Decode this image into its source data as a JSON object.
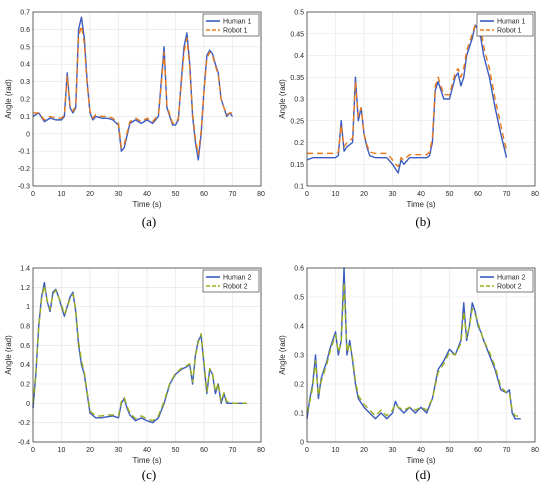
{
  "figure": {
    "panels": [
      {
        "caption": "(a)"
      },
      {
        "caption": "(b)"
      },
      {
        "caption": "(c)"
      },
      {
        "caption": "(d)"
      }
    ]
  },
  "chart_data": [
    {
      "type": "line",
      "title": "",
      "xlabel": "Time (s)",
      "ylabel": "Angle (rad)",
      "xlim": [
        0,
        80
      ],
      "ylim": [
        -0.3,
        0.7
      ],
      "xticks": [
        "0",
        "10",
        "20",
        "30",
        "40",
        "50",
        "60",
        "70",
        "80"
      ],
      "yticks": [
        "-0.3",
        "-0.2",
        "-0.1",
        "0",
        "0.1",
        "0.2",
        "0.3",
        "0.4",
        "0.5",
        "0.6",
        "0.7"
      ],
      "grid": true,
      "legend_position": "top-right",
      "x": [
        0,
        2,
        4,
        6,
        8,
        10,
        11,
        12,
        13,
        14,
        15,
        16,
        17,
        18,
        19,
        20,
        21,
        22,
        24,
        26,
        28,
        30,
        31,
        32,
        34,
        36,
        38,
        40,
        42,
        44,
        45,
        46,
        47,
        48,
        49,
        50,
        51,
        52,
        53,
        54,
        55,
        56,
        57,
        58,
        59,
        60,
        61,
        62,
        63,
        64,
        65,
        66,
        67,
        68,
        69,
        70
      ],
      "series": [
        {
          "name": "Human 1",
          "color": "#3a5bbf",
          "dash": "solid",
          "values": [
            0.1,
            0.12,
            0.07,
            0.09,
            0.08,
            0.08,
            0.1,
            0.35,
            0.15,
            0.12,
            0.15,
            0.6,
            0.67,
            0.55,
            0.3,
            0.12,
            0.08,
            0.1,
            0.09,
            0.09,
            0.08,
            0.05,
            -0.1,
            -0.08,
            0.06,
            0.08,
            0.06,
            0.08,
            0.06,
            0.1,
            0.3,
            0.5,
            0.15,
            0.1,
            0.05,
            0.05,
            0.08,
            0.3,
            0.5,
            0.58,
            0.4,
            0.1,
            -0.05,
            -0.15,
            0.0,
            0.25,
            0.45,
            0.48,
            0.46,
            0.4,
            0.35,
            0.2,
            0.15,
            0.1,
            0.12,
            0.1
          ]
        },
        {
          "name": "Robot 1",
          "color": "#e87a1e",
          "dash": "6,4",
          "values": [
            0.12,
            0.12,
            0.08,
            0.1,
            0.09,
            0.09,
            0.11,
            0.33,
            0.16,
            0.13,
            0.16,
            0.56,
            0.62,
            0.52,
            0.28,
            0.13,
            0.09,
            0.11,
            0.1,
            0.1,
            0.09,
            0.06,
            -0.08,
            -0.06,
            0.07,
            0.09,
            0.07,
            0.09,
            0.07,
            0.11,
            0.28,
            0.47,
            0.16,
            0.11,
            0.06,
            0.06,
            0.09,
            0.28,
            0.47,
            0.55,
            0.38,
            0.12,
            -0.03,
            -0.12,
            0.02,
            0.24,
            0.43,
            0.47,
            0.45,
            0.39,
            0.34,
            0.2,
            0.15,
            0.11,
            0.12,
            0.12
          ]
        }
      ]
    },
    {
      "type": "line",
      "title": "",
      "xlabel": "Time (s)",
      "ylabel": "Angle (rad)",
      "xlim": [
        0,
        80
      ],
      "ylim": [
        0.1,
        0.5
      ],
      "xticks": [
        "0",
        "10",
        "20",
        "30",
        "40",
        "50",
        "60",
        "70",
        "80"
      ],
      "yticks": [
        "0.1",
        "0.15",
        "0.2",
        "0.25",
        "0.3",
        "0.35",
        "0.4",
        "0.45",
        "0.5"
      ],
      "grid": true,
      "legend_position": "top-right",
      "x": [
        0,
        2,
        4,
        6,
        8,
        10,
        11,
        12,
        13,
        14,
        16,
        17,
        18,
        19,
        20,
        21,
        22,
        24,
        26,
        28,
        30,
        31,
        32,
        33,
        34,
        36,
        38,
        40,
        42,
        43,
        44,
        45,
        46,
        48,
        50,
        52,
        53,
        54,
        55,
        56,
        58,
        59,
        60,
        61,
        62,
        64,
        66,
        68,
        70
      ],
      "series": [
        {
          "name": "Human 1",
          "color": "#3a5bbf",
          "dash": "solid",
          "values": [
            0.16,
            0.165,
            0.165,
            0.165,
            0.165,
            0.165,
            0.17,
            0.25,
            0.18,
            0.19,
            0.2,
            0.35,
            0.25,
            0.28,
            0.22,
            0.19,
            0.17,
            0.165,
            0.165,
            0.165,
            0.15,
            0.14,
            0.13,
            0.16,
            0.15,
            0.165,
            0.165,
            0.165,
            0.165,
            0.17,
            0.2,
            0.32,
            0.34,
            0.3,
            0.3,
            0.35,
            0.36,
            0.33,
            0.35,
            0.4,
            0.44,
            0.47,
            0.46,
            0.44,
            0.4,
            0.35,
            0.28,
            0.22,
            0.165
          ]
        },
        {
          "name": "Robot 1",
          "color": "#e87a1e",
          "dash": "6,4",
          "values": [
            0.175,
            0.175,
            0.175,
            0.175,
            0.175,
            0.175,
            0.178,
            0.24,
            0.19,
            0.2,
            0.21,
            0.34,
            0.26,
            0.28,
            0.22,
            0.195,
            0.178,
            0.175,
            0.175,
            0.175,
            0.16,
            0.15,
            0.145,
            0.165,
            0.16,
            0.172,
            0.172,
            0.172,
            0.172,
            0.178,
            0.21,
            0.33,
            0.35,
            0.31,
            0.31,
            0.36,
            0.37,
            0.35,
            0.37,
            0.41,
            0.45,
            0.47,
            0.47,
            0.46,
            0.42,
            0.37,
            0.3,
            0.24,
            0.18
          ]
        }
      ]
    },
    {
      "type": "line",
      "title": "",
      "xlabel": "Time (s)",
      "ylabel": "Angle (rad)",
      "xlim": [
        0,
        80
      ],
      "ylim": [
        -0.4,
        1.4
      ],
      "xticks": [
        "0",
        "10",
        "20",
        "30",
        "40",
        "50",
        "60",
        "70",
        "80"
      ],
      "yticks": [
        "-0.4",
        "-0.2",
        "0",
        "0.2",
        "0.4",
        "0.6",
        "0.8",
        "1",
        "1.2",
        "1.4"
      ],
      "grid": true,
      "legend_position": "top-right",
      "x": [
        0,
        1,
        2,
        3,
        4,
        5,
        6,
        7,
        8,
        9,
        10,
        11,
        12,
        13,
        14,
        15,
        16,
        17,
        18,
        19,
        20,
        22,
        24,
        26,
        28,
        30,
        31,
        32,
        33,
        34,
        36,
        38,
        40,
        42,
        44,
        46,
        48,
        50,
        52,
        54,
        55,
        56,
        57,
        58,
        59,
        60,
        61,
        62,
        63,
        64,
        65,
        66,
        67,
        68,
        70,
        72,
        74,
        75
      ],
      "series": [
        {
          "name": "Human 2",
          "color": "#3a5bbf",
          "dash": "solid",
          "values": [
            -0.05,
            0.3,
            0.8,
            1.1,
            1.25,
            1.05,
            0.95,
            1.15,
            1.18,
            1.1,
            1.0,
            0.9,
            1.0,
            1.1,
            1.15,
            0.95,
            0.6,
            0.4,
            0.3,
            0.1,
            -0.1,
            -0.15,
            -0.15,
            -0.14,
            -0.13,
            -0.15,
            0.0,
            0.05,
            -0.05,
            -0.12,
            -0.18,
            -0.15,
            -0.18,
            -0.2,
            -0.15,
            0.0,
            0.2,
            0.3,
            0.35,
            0.38,
            0.4,
            0.2,
            0.5,
            0.65,
            0.7,
            0.4,
            0.1,
            0.35,
            0.3,
            0.1,
            0.2,
            0.0,
            0.1,
            0.0,
            0.0,
            0.0,
            0.0,
            0.0
          ]
        },
        {
          "name": "Robot 2",
          "color": "#9aad1c",
          "dash": "6,4",
          "values": [
            0.0,
            0.32,
            0.78,
            1.08,
            1.22,
            1.06,
            0.97,
            1.13,
            1.17,
            1.1,
            1.02,
            0.92,
            1.0,
            1.08,
            1.13,
            0.97,
            0.64,
            0.44,
            0.32,
            0.12,
            -0.08,
            -0.13,
            -0.13,
            -0.12,
            -0.12,
            -0.13,
            0.02,
            0.06,
            -0.03,
            -0.1,
            -0.16,
            -0.13,
            -0.16,
            -0.18,
            -0.13,
            0.02,
            0.21,
            0.31,
            0.36,
            0.39,
            0.41,
            0.22,
            0.49,
            0.63,
            0.72,
            0.43,
            0.12,
            0.36,
            0.31,
            0.12,
            0.21,
            0.02,
            0.11,
            0.02,
            0.0,
            0.0,
            0.0,
            0.0
          ]
        }
      ]
    },
    {
      "type": "line",
      "title": "",
      "xlabel": "Time (s)",
      "ylabel": "Angle (rad)",
      "xlim": [
        0,
        80
      ],
      "ylim": [
        0,
        0.6
      ],
      "xticks": [
        "0",
        "10",
        "20",
        "30",
        "40",
        "50",
        "60",
        "70",
        "80"
      ],
      "yticks": [
        "0",
        "0.1",
        "0.2",
        "0.3",
        "0.4",
        "0.5",
        "0.6"
      ],
      "grid": true,
      "legend_position": "top-right",
      "x": [
        0,
        1,
        2,
        3,
        4,
        5,
        6,
        7,
        8,
        9,
        10,
        11,
        12,
        13,
        14,
        15,
        16,
        17,
        18,
        20,
        22,
        24,
        26,
        28,
        30,
        31,
        32,
        34,
        36,
        38,
        40,
        42,
        44,
        46,
        48,
        50,
        52,
        54,
        55,
        56,
        57,
        58,
        59,
        60,
        61,
        62,
        64,
        66,
        68,
        70,
        71,
        72,
        73,
        74,
        75
      ],
      "series": [
        {
          "name": "Human 2",
          "color": "#3a5bbf",
          "dash": "solid",
          "values": [
            0.08,
            0.15,
            0.2,
            0.3,
            0.15,
            0.22,
            0.25,
            0.28,
            0.32,
            0.35,
            0.38,
            0.3,
            0.35,
            0.6,
            0.3,
            0.35,
            0.28,
            0.2,
            0.15,
            0.12,
            0.1,
            0.08,
            0.1,
            0.08,
            0.1,
            0.14,
            0.12,
            0.1,
            0.12,
            0.1,
            0.12,
            0.1,
            0.15,
            0.25,
            0.28,
            0.32,
            0.3,
            0.35,
            0.48,
            0.35,
            0.4,
            0.48,
            0.45,
            0.4,
            0.38,
            0.35,
            0.3,
            0.25,
            0.18,
            0.17,
            0.18,
            0.1,
            0.08,
            0.08,
            0.08
          ]
        },
        {
          "name": "Robot 2",
          "color": "#9aad1c",
          "dash": "6,4",
          "values": [
            0.1,
            0.14,
            0.19,
            0.28,
            0.16,
            0.21,
            0.24,
            0.27,
            0.31,
            0.34,
            0.37,
            0.31,
            0.34,
            0.55,
            0.31,
            0.34,
            0.29,
            0.21,
            0.16,
            0.13,
            0.11,
            0.09,
            0.11,
            0.09,
            0.11,
            0.13,
            0.12,
            0.11,
            0.12,
            0.11,
            0.12,
            0.11,
            0.15,
            0.24,
            0.27,
            0.31,
            0.3,
            0.34,
            0.45,
            0.36,
            0.4,
            0.46,
            0.44,
            0.41,
            0.38,
            0.35,
            0.31,
            0.26,
            0.19,
            0.17,
            0.17,
            0.11,
            0.09,
            0.09,
            0.09
          ]
        }
      ]
    }
  ]
}
